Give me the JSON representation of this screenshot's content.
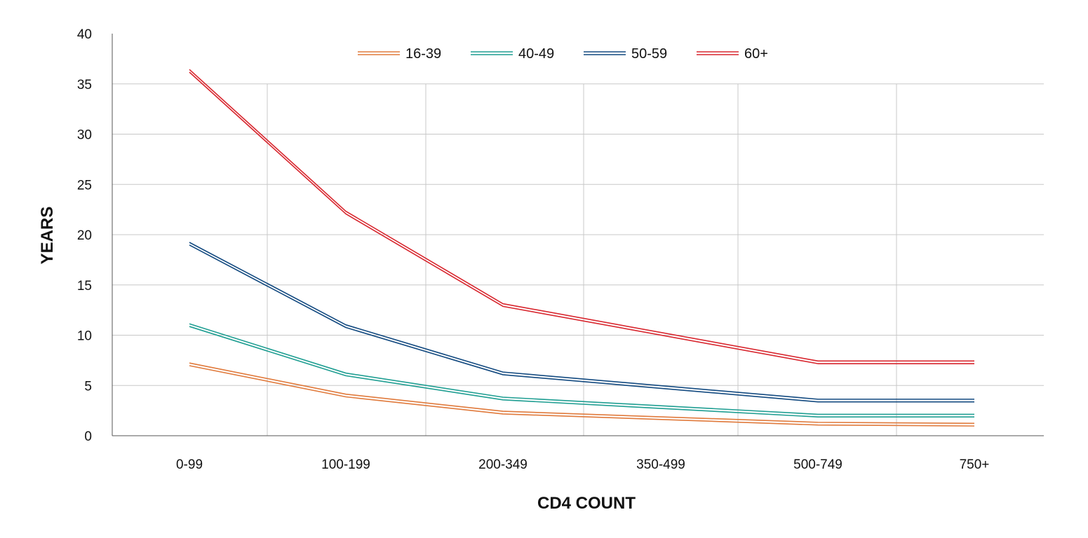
{
  "chart_data": {
    "type": "line",
    "title": "",
    "xlabel": "CD4 COUNT",
    "ylabel": "YEARS",
    "categories": [
      "0-99",
      "100-199",
      "200-349",
      "350-499",
      "500-749",
      "750+"
    ],
    "ylim": [
      0,
      40
    ],
    "yticks": [
      0,
      5,
      10,
      15,
      20,
      25,
      30,
      35,
      40
    ],
    "grid": true,
    "legend_position": "top-center",
    "series": [
      {
        "name": "16-39",
        "color": "#E07A3C",
        "values": [
          7.1,
          4.0,
          2.3,
          null,
          1.2,
          1.1
        ]
      },
      {
        "name": "40-49",
        "color": "#1F9E92",
        "values": [
          11.0,
          6.1,
          3.7,
          null,
          2.0,
          2.0
        ]
      },
      {
        "name": "50-59",
        "color": "#134A80",
        "values": [
          19.1,
          10.9,
          6.2,
          null,
          3.5,
          3.5
        ]
      },
      {
        "name": "60+",
        "color": "#D8262E",
        "values": [
          36.3,
          22.2,
          13.0,
          null,
          7.3,
          7.3
        ]
      }
    ]
  }
}
